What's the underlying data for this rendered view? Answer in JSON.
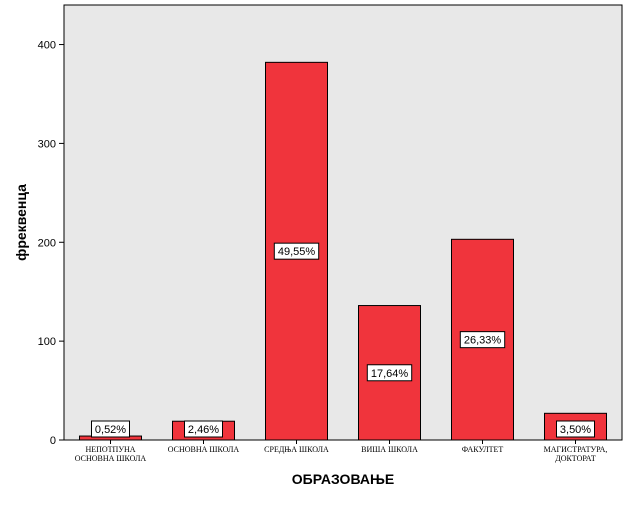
{
  "chart_data": {
    "type": "bar",
    "title": "",
    "xlabel": "ОБРАЗОВАЊЕ",
    "ylabel": "фреквенца",
    "categories": [
      "НЕПОТПУНА ОСНОВНА ШКОЛА",
      "ОСНОВНА ШКОЛА",
      "СРЕДЊА ШКОЛА",
      "ВИША ШКОЛА",
      "ФАКУЛТЕТ",
      "МАГИСТРАТУРА, ДОКТОРАТ"
    ],
    "category_lines": [
      [
        "НЕПОТПУНА",
        "ОСНОВНА ШКОЛА"
      ],
      [
        "ОСНОВНА ШКОЛА"
      ],
      [
        "СРЕДЊА ШКОЛА"
      ],
      [
        "ВИША ШКОЛА"
      ],
      [
        "ФАКУЛТЕТ"
      ],
      [
        "МАГИСТРАТУРА,",
        "ДОКТОРАТ"
      ]
    ],
    "values": [
      4,
      19,
      382,
      136,
      203,
      27
    ],
    "data_labels": [
      "0,52%",
      "2,46%",
      "49,55%",
      "17,64%",
      "26,33%",
      "3,50%"
    ],
    "ylim": [
      0,
      440
    ],
    "yticks": [
      0,
      100,
      200,
      300,
      400
    ],
    "grid": false,
    "legend": "none",
    "colors": {
      "bar_fill": "#f0343c",
      "bar_stroke": "#000000",
      "plot_background": "#e8e8e8",
      "label_box": "#ffffff"
    }
  }
}
